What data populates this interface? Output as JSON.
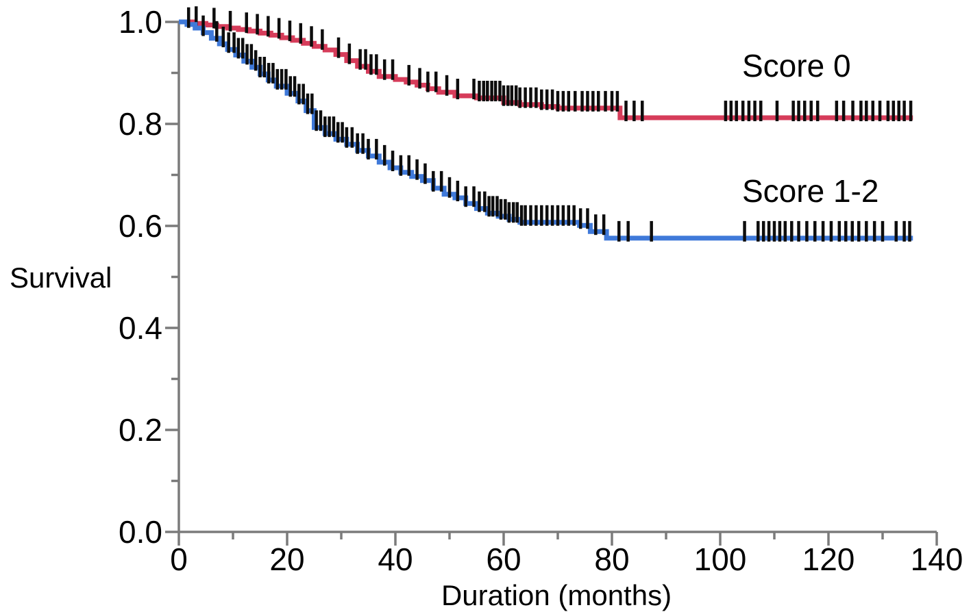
{
  "figure": {
    "background": "#ffffff"
  },
  "chart_data": {
    "type": "line",
    "subtype": "kaplan_meier_step_survival",
    "title": "",
    "xlabel": "Duration (months)",
    "ylabel": "Survival",
    "xlim": [
      0,
      140
    ],
    "ylim": [
      0.0,
      1.0
    ],
    "grid": false,
    "legend_position": "inline-right-of-curves",
    "axis_color": "#7b7b7b",
    "censor_tick_color": "#0d0d0d",
    "x_tick_values": [
      0,
      20,
      40,
      60,
      80,
      100,
      120,
      140
    ],
    "x_tick_labels": [
      "0",
      "20",
      "40",
      "60",
      "80",
      "100",
      "120",
      "140"
    ],
    "x_minor_ticks": [
      10,
      30,
      50,
      70,
      90,
      110,
      130
    ],
    "y_tick_values": [
      0.0,
      0.2,
      0.4,
      0.6,
      0.8,
      1.0
    ],
    "y_tick_labels": [
      "0.0",
      "0.2",
      "0.4",
      "0.6",
      "0.8",
      "1.0"
    ],
    "y_minor_ticks": [
      0.1,
      0.3,
      0.5,
      0.7,
      0.9
    ],
    "series": [
      {
        "id": "score-0",
        "name": "Score 0",
        "color": "#d63c5a",
        "points": [
          [
            0,
            1.0
          ],
          [
            3,
            0.997
          ],
          [
            5,
            0.994
          ],
          [
            7,
            0.991
          ],
          [
            9,
            0.988
          ],
          [
            11,
            0.985
          ],
          [
            13,
            0.982
          ],
          [
            15,
            0.978
          ],
          [
            17,
            0.974
          ],
          [
            19,
            0.969
          ],
          [
            21,
            0.964
          ],
          [
            23,
            0.958
          ],
          [
            25,
            0.952
          ],
          [
            27,
            0.945
          ],
          [
            29,
            0.936
          ],
          [
            31,
            0.924
          ],
          [
            33,
            0.913
          ],
          [
            35,
            0.903
          ],
          [
            37,
            0.893
          ],
          [
            40,
            0.887
          ],
          [
            42,
            0.882
          ],
          [
            44,
            0.876
          ],
          [
            46,
            0.869
          ],
          [
            48,
            0.862
          ],
          [
            51,
            0.855
          ],
          [
            55,
            0.851
          ],
          [
            60,
            0.842
          ],
          [
            63,
            0.838
          ],
          [
            67,
            0.834
          ],
          [
            70,
            0.831
          ],
          [
            81.5,
            0.812
          ],
          [
            135.6,
            0.812
          ]
        ],
        "censor_months": [
          3.2,
          6.5,
          9.5,
          12.5,
          14.5,
          16.5,
          18.5,
          20.5,
          22.5,
          24.5,
          26.5,
          29.5,
          31.5,
          33.5,
          34.5,
          35.5,
          36.5,
          38,
          39.5,
          42.5,
          44.5,
          46,
          47.5,
          49.5,
          51.5,
          54.5,
          55.5,
          56.3,
          57,
          57.8,
          58.5,
          59.3,
          60,
          60.8,
          61.5,
          62.3,
          63,
          64,
          65,
          66,
          67,
          68,
          69,
          70,
          71,
          72,
          73.2,
          74.5,
          75.5,
          76.5,
          77.5,
          78.8,
          80,
          81,
          82.6,
          84.1,
          85.6,
          101,
          102,
          103,
          104.2,
          105.3,
          106.4,
          107.5,
          110.5,
          113.5,
          114.5,
          115.6,
          116.8,
          118,
          121.5,
          122.8,
          124.5,
          126,
          127,
          128.2,
          129.5,
          131,
          132,
          133,
          134,
          135.2
        ]
      },
      {
        "id": "score-1-2",
        "name": "Score 1-2",
        "color": "#3f79d9",
        "points": [
          [
            0,
            1.0
          ],
          [
            1.5,
            0.995
          ],
          [
            3,
            0.988
          ],
          [
            4.5,
            0.979
          ],
          [
            6,
            0.968
          ],
          [
            7.5,
            0.957
          ],
          [
            9,
            0.946
          ],
          [
            10.5,
            0.935
          ],
          [
            12,
            0.923
          ],
          [
            13.5,
            0.911
          ],
          [
            15,
            0.898
          ],
          [
            16.5,
            0.886
          ],
          [
            18,
            0.874
          ],
          [
            20,
            0.86
          ],
          [
            22,
            0.845
          ],
          [
            23.5,
            0.826
          ],
          [
            25,
            0.793
          ],
          [
            27,
            0.781
          ],
          [
            29,
            0.77
          ],
          [
            31,
            0.76
          ],
          [
            33,
            0.748
          ],
          [
            35,
            0.737
          ],
          [
            37,
            0.725
          ],
          [
            39,
            0.714
          ],
          [
            41,
            0.705
          ],
          [
            43,
            0.697
          ],
          [
            45,
            0.689
          ],
          [
            47,
            0.674
          ],
          [
            49,
            0.662
          ],
          [
            51,
            0.655
          ],
          [
            53,
            0.644
          ],
          [
            55,
            0.634
          ],
          [
            57,
            0.625
          ],
          [
            59,
            0.619
          ],
          [
            61,
            0.613
          ],
          [
            63,
            0.607
          ],
          [
            74,
            0.601
          ],
          [
            76,
            0.589
          ],
          [
            79,
            0.576
          ],
          [
            135.6,
            0.576
          ]
        ],
        "censor_months": [
          1.8,
          4.5,
          7,
          8.2,
          9.2,
          10.2,
          11,
          11.8,
          12.6,
          13.4,
          14.2,
          15,
          15.8,
          16.6,
          17.4,
          18.2,
          19,
          19.8,
          20.6,
          21.4,
          22.2,
          23,
          23.8,
          24.6,
          25.4,
          26.2,
          27,
          27.8,
          28.6,
          29.4,
          30.2,
          31,
          32,
          33,
          34,
          35,
          36.5,
          38,
          39.5,
          41,
          42.5,
          44,
          45.5,
          47,
          48.5,
          50,
          51.5,
          53,
          54.5,
          55.5,
          56.5,
          57.3,
          58,
          58.8,
          59.5,
          60.3,
          61,
          61.8,
          62.5,
          63.3,
          64,
          65,
          66,
          67,
          68,
          69,
          70,
          71,
          72,
          73,
          74.2,
          75.5,
          77,
          78.5,
          81.3,
          83,
          87.3,
          104.5,
          107,
          108,
          109,
          110,
          111,
          112,
          113.2,
          114.5,
          116,
          117.5,
          119,
          120.5,
          122,
          123.2,
          124.4,
          125.6,
          127,
          128.5,
          130,
          132.5,
          134,
          135
        ]
      }
    ]
  }
}
